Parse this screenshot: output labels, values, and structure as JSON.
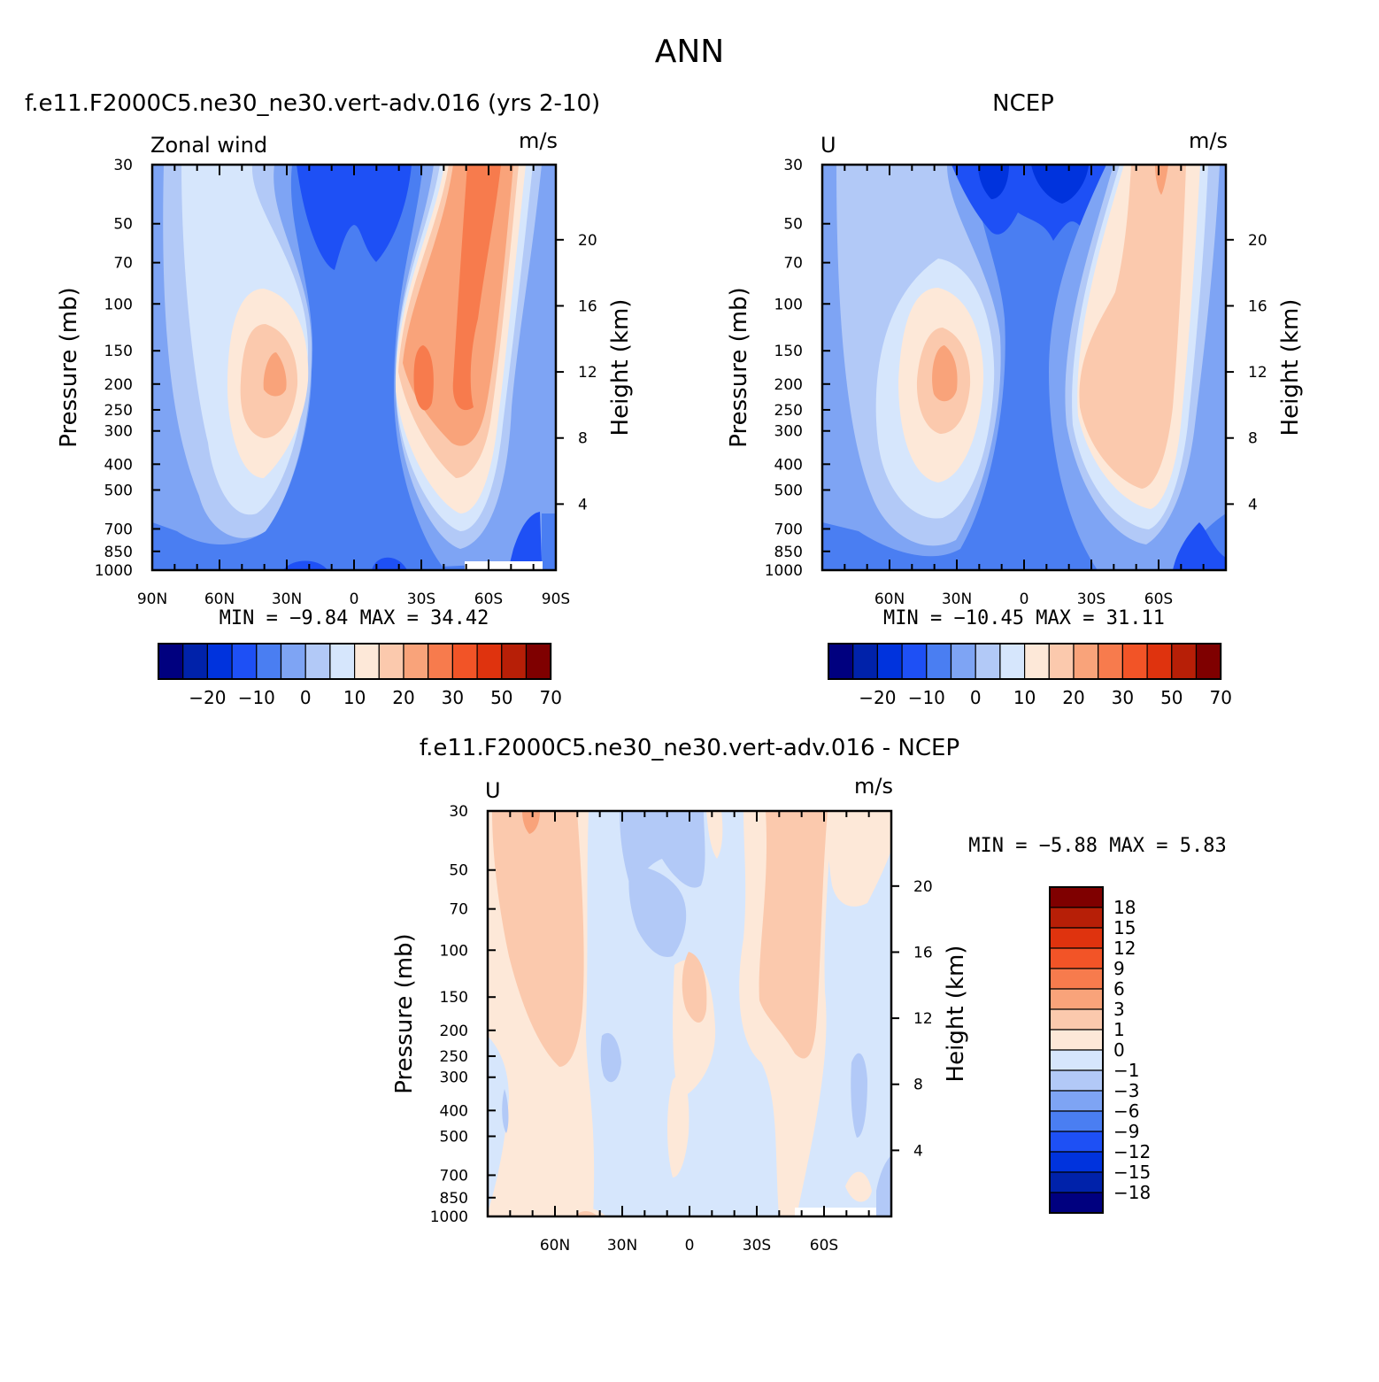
{
  "figure_title": "ANN",
  "chart_data": [
    {
      "type": "heatmap",
      "title": "f.e11.F2000C5.ne30_ne30.vert-adv.016 (yrs 2-10)",
      "left_label": "Zonal wind",
      "units": "m/s",
      "ylabel": "Pressure (mb)",
      "ylabel_right": "Height (km)",
      "x_ticks": [
        "90N",
        "60N",
        "30N",
        "0",
        "30S",
        "60S",
        "90S"
      ],
      "x_range": [
        90,
        -90
      ],
      "y_ticks": [
        "30",
        "50",
        "70",
        "100",
        "150",
        "200",
        "250",
        "300",
        "400",
        "500",
        "700",
        "850",
        "1000"
      ],
      "y_range": [
        30,
        1000
      ],
      "y_scale": "log",
      "height_ticks": [
        "4",
        "8",
        "12",
        "16",
        "20"
      ],
      "stats": "MIN = -9.84 MAX = 34.42",
      "min": -9.84,
      "max": 34.42,
      "colorbar": {
        "orientation": "horizontal",
        "levels": [
          -25,
          -20,
          -15,
          -10,
          -5,
          0,
          5,
          10,
          15,
          20,
          25,
          30,
          40,
          50,
          60,
          70
        ],
        "labels": [
          "-20",
          "-10",
          "0",
          "10",
          "20",
          "30",
          "50",
          "70"
        ]
      }
    },
    {
      "type": "heatmap",
      "title": "NCEP",
      "left_label": "U",
      "units": "m/s",
      "ylabel": "Pressure (mb)",
      "ylabel_right": "Height (km)",
      "x_ticks": [
        "60N",
        "30N",
        "0",
        "30S",
        "60S"
      ],
      "x_range": [
        90,
        -90
      ],
      "y_ticks": [
        "30",
        "50",
        "70",
        "100",
        "150",
        "200",
        "250",
        "300",
        "400",
        "500",
        "700",
        "850",
        "1000"
      ],
      "y_range": [
        30,
        1000
      ],
      "y_scale": "log",
      "height_ticks": [
        "4",
        "8",
        "12",
        "16",
        "20"
      ],
      "stats": "MIN = -10.45 MAX = 31.11",
      "min": -10.45,
      "max": 31.11,
      "colorbar": {
        "orientation": "horizontal",
        "levels": [
          -25,
          -20,
          -15,
          -10,
          -5,
          0,
          5,
          10,
          15,
          20,
          25,
          30,
          40,
          50,
          60,
          70
        ],
        "labels": [
          "-20",
          "-10",
          "0",
          "10",
          "20",
          "30",
          "50",
          "70"
        ]
      }
    },
    {
      "type": "heatmap",
      "title": "f.e11.F2000C5.ne30_ne30.vert-adv.016 - NCEP",
      "left_label": "U",
      "units": "m/s",
      "ylabel": "Pressure (mb)",
      "ylabel_right": "Height (km)",
      "x_ticks": [
        "60N",
        "30N",
        "0",
        "30S",
        "60S"
      ],
      "x_range": [
        90,
        -90
      ],
      "y_ticks": [
        "30",
        "50",
        "70",
        "100",
        "150",
        "200",
        "250",
        "300",
        "400",
        "500",
        "700",
        "850",
        "1000"
      ],
      "y_range": [
        30,
        1000
      ],
      "y_scale": "log",
      "height_ticks": [
        "4",
        "8",
        "12",
        "16",
        "20"
      ],
      "stats": "MIN = -5.88 MAX = 5.83",
      "min": -5.88,
      "max": 5.83,
      "colorbar": {
        "orientation": "vertical",
        "levels": [
          -18,
          -15,
          -12,
          -9,
          -6,
          -3,
          -1,
          0,
          1,
          3,
          6,
          9,
          12,
          15,
          18
        ],
        "labels": [
          "18",
          "15",
          "12",
          "9",
          "6",
          "3",
          "1",
          "0",
          "-1",
          "-3",
          "-6",
          "-9",
          "-12",
          "-15",
          "-18"
        ]
      }
    }
  ],
  "palettes": {
    "wind_16": [
      "#00007f",
      "#0022aa",
      "#0033dd",
      "#1e50f5",
      "#4a7ef2",
      "#7ea4f4",
      "#b2c9f7",
      "#d6e6fc",
      "#fde8d8",
      "#fbc9ad",
      "#f9a37a",
      "#f77b4d",
      "#f25427",
      "#df330e",
      "#b71f07",
      "#7f0000"
    ],
    "diff_16": [
      "#00007f",
      "#0022aa",
      "#0033dd",
      "#1e50f5",
      "#4a7ef2",
      "#7ea4f4",
      "#b2c9f7",
      "#d6e6fc",
      "#fde8d8",
      "#fbc9ad",
      "#f9a37a",
      "#f77b4d",
      "#f25427",
      "#df330e",
      "#b71f07",
      "#7f0000"
    ]
  }
}
